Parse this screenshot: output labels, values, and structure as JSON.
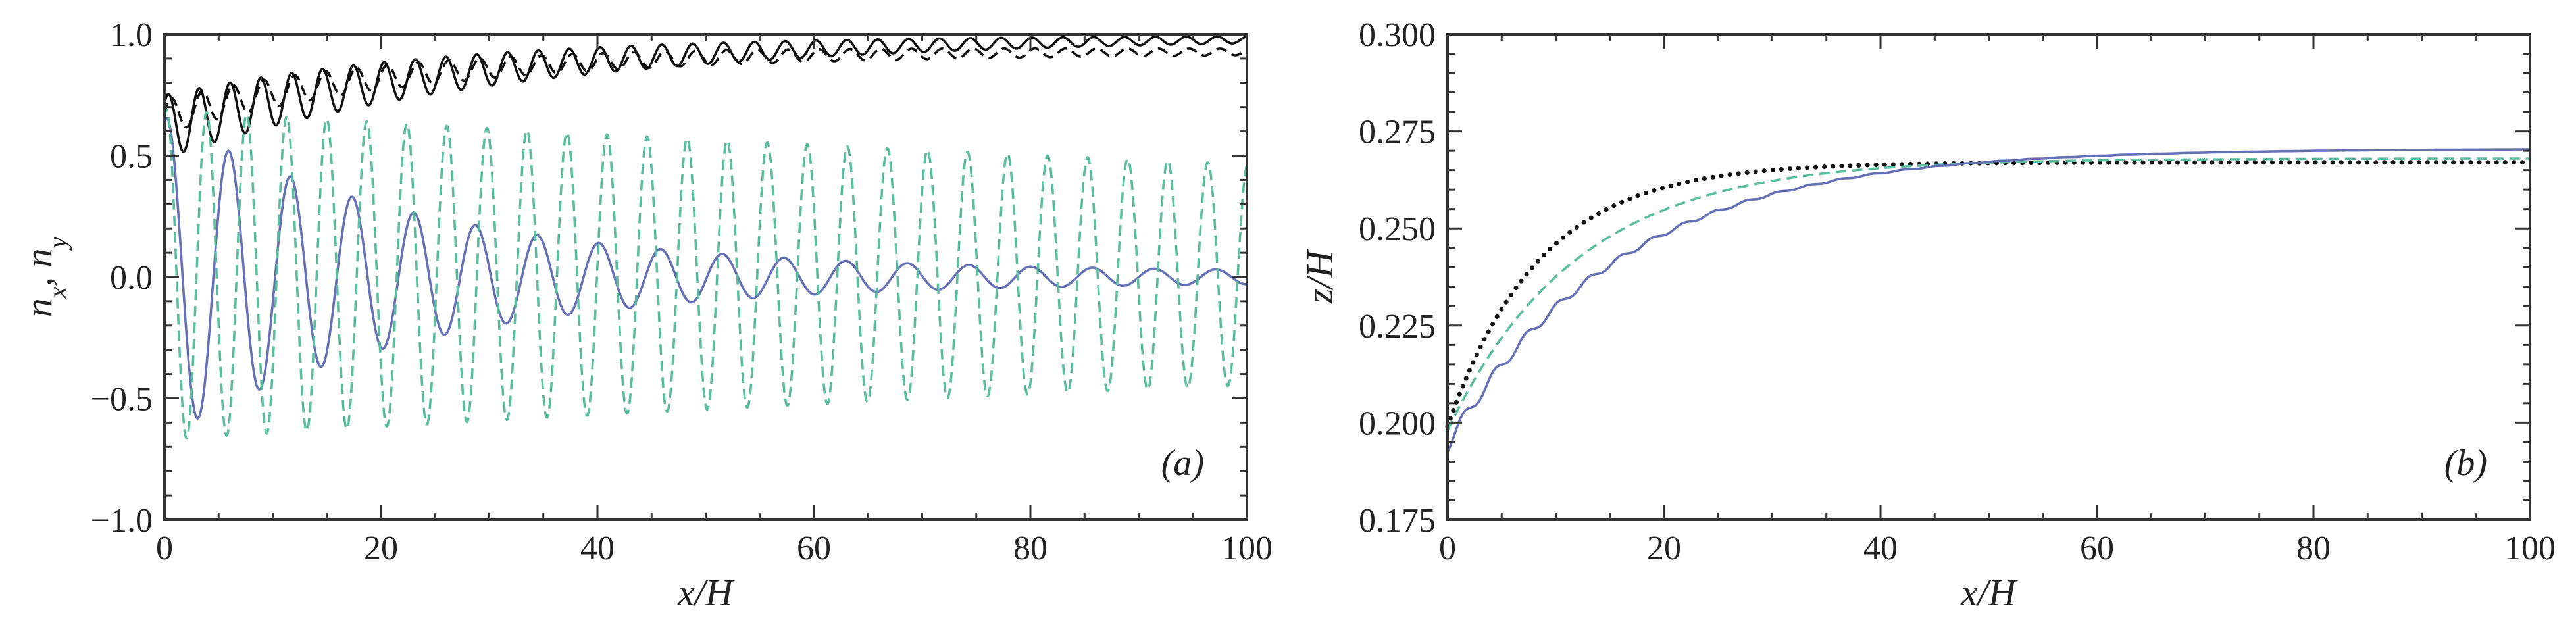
{
  "chart_data": [
    {
      "type": "line",
      "panel_label": "(a)",
      "xlabel": "x/H",
      "ylabel": "n_x, n_y",
      "ylabel_parts": {
        "n1": "n",
        "s1": "x",
        "sep": ", ",
        "n2": "n",
        "s2": "y"
      },
      "xlim": [
        0,
        100
      ],
      "ylim": [
        -1.0,
        1.0
      ],
      "xticks": [
        0,
        20,
        40,
        60,
        80,
        100
      ],
      "xtick_labels": [
        "0",
        "20",
        "40",
        "60",
        "80",
        "100"
      ],
      "yticks": [
        -1.0,
        -0.5,
        0.0,
        0.5,
        1.0
      ],
      "ytick_labels": [
        "−1.0",
        "−0.5",
        "0.0",
        "0.5",
        "1.0"
      ],
      "grid": false,
      "series": [
        {
          "name": "n_x solid",
          "color": "#111111",
          "style": "solid",
          "model": {
            "kind": "envelope",
            "base_start": 0.62,
            "base_end": 0.99,
            "tau": 30,
            "amp_start": 0.13,
            "amp_decay": 45,
            "period": 2.85,
            "phase": 0.8,
            "clip_max": 1.0
          }
        },
        {
          "name": "n_x dashed",
          "color": "#111111",
          "style": "dashed",
          "model": {
            "kind": "envelope",
            "base_start": 0.66,
            "base_end": 0.93,
            "tau": 22,
            "amp_start": 0.07,
            "amp_decay": 60,
            "period": 2.85,
            "phase": 0.2,
            "clip_max": 1.0
          }
        },
        {
          "name": "n_y solid",
          "color": "#6670b5",
          "style": "solid",
          "model": {
            "kind": "decay_osc",
            "amp_start": 0.66,
            "amp_decay": 24,
            "amp_floor": 0.02,
            "period": 5.7,
            "phase": 1.3,
            "offset": 0.0
          }
        },
        {
          "name": "n_y dashed",
          "color": "#5bbd9f",
          "style": "dashed",
          "model": {
            "kind": "decay_osc",
            "amp_start": 0.68,
            "amp_decay": 250,
            "amp_floor": 0.0,
            "period": 3.7,
            "phase": 1.25,
            "offset": 0.01
          }
        }
      ]
    },
    {
      "type": "line",
      "panel_label": "(b)",
      "xlabel": "x/H",
      "ylabel": "z/H",
      "xlim": [
        0,
        100
      ],
      "ylim": [
        0.175,
        0.3
      ],
      "xticks": [
        0,
        20,
        40,
        60,
        80,
        100
      ],
      "xtick_labels": [
        "0",
        "20",
        "40",
        "60",
        "80",
        "100"
      ],
      "yticks": [
        0.175,
        0.2,
        0.225,
        0.25,
        0.275,
        0.3
      ],
      "ytick_labels": [
        "0.175",
        "0.200",
        "0.225",
        "0.250",
        "0.275",
        "0.300"
      ],
      "grid": false,
      "series": [
        {
          "name": "dotted",
          "color": "#111111",
          "style": "dotted",
          "model": {
            "kind": "sat",
            "start": 0.199,
            "end": 0.267,
            "tau": 8.5,
            "ripple": 0,
            "period": 3.0
          }
        },
        {
          "name": "dashed",
          "color": "#5bbd9f",
          "style": "dashed",
          "model": {
            "kind": "sat",
            "start": 0.198,
            "end": 0.268,
            "tau": 12.0,
            "ripple": 0,
            "period": 3.0
          }
        },
        {
          "name": "solid",
          "color": "#6670b5",
          "style": "solid",
          "model": {
            "kind": "sat",
            "start": 0.196,
            "end": 0.2705,
            "tau": 16.0,
            "ripple": 0.0035,
            "ripple_decay": 16,
            "period": 2.9
          }
        }
      ]
    }
  ]
}
